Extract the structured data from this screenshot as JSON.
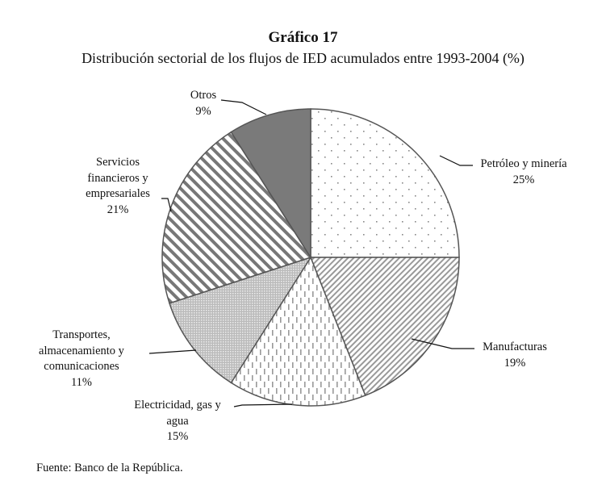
{
  "chart_data": {
    "type": "pie",
    "title": "Gráfico 17",
    "subtitle": "Distribución sectorial de los flujos de IED acumulados entre 1993-2004 (%)",
    "start_angle": "12 o'clock, clockwise",
    "slices": [
      {
        "label": [
          "Petróleo y minería"
        ],
        "value": 25,
        "value_label": "25%",
        "pattern": "sparse-dots"
      },
      {
        "label": [
          "Manufacturas"
        ],
        "value": 19,
        "value_label": "19%",
        "pattern": "fine-diagonal"
      },
      {
        "label": [
          "Electricidad, gas y",
          "agua"
        ],
        "value": 15,
        "value_label": "15%",
        "pattern": "vertical-dashes"
      },
      {
        "label": [
          "Transportes,",
          "almacenamiento y",
          "comunicaciones"
        ],
        "value": 11,
        "value_label": "11%",
        "pattern": "dense-dots"
      },
      {
        "label": [
          "Servicios",
          "financieros y",
          "empresariales"
        ],
        "value": 21,
        "value_label": "21%",
        "pattern": "bold-diagonal"
      },
      {
        "label": [
          "Otros"
        ],
        "value": 9,
        "value_label": "9%",
        "pattern": "solid",
        "color": "#7a7a7a"
      }
    ],
    "source": "Fuente: Banco de la República."
  }
}
